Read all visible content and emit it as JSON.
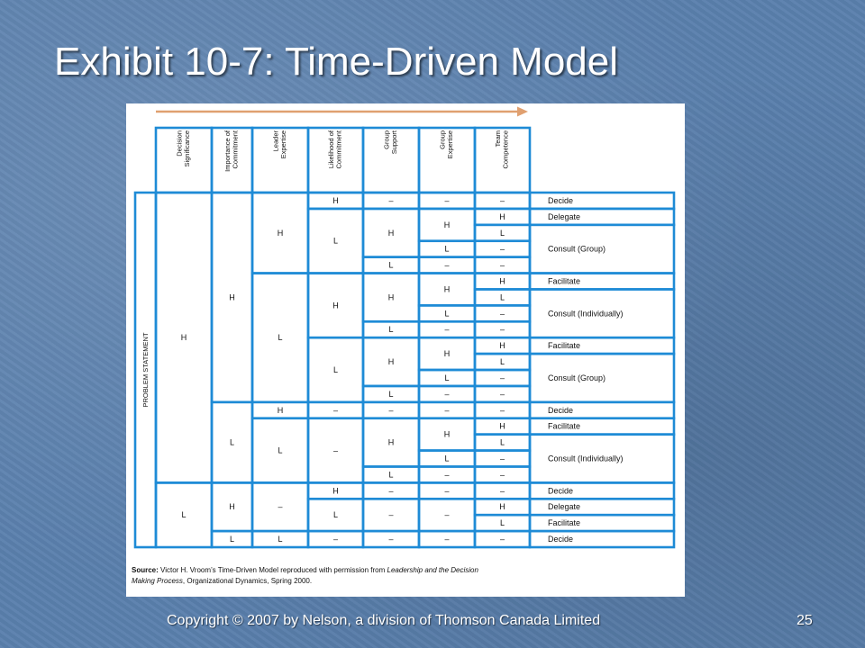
{
  "slide": {
    "title": "Exhibit 10-7: Time-Driven Model",
    "footer": "Copyright © 2007 by Nelson, a division of Thomson Canada Limited",
    "page_number": "25"
  },
  "colors": {
    "background": "#5a80ad",
    "grid": "#1e8bd6",
    "arrow": "#e0a070"
  },
  "figure": {
    "row_label": "PROBLEM STATEMENT",
    "headers": [
      [
        "Decision",
        "Significance"
      ],
      [
        "Importance of",
        "Commitment"
      ],
      [
        "Leader",
        "Expertise"
      ],
      [
        "Likelihood of",
        "Commitment"
      ],
      [
        "Group",
        "Support"
      ],
      [
        "Group",
        "Expertise"
      ],
      [
        "Team",
        "Competence"
      ]
    ],
    "cells": {
      "c0": [
        [
          "H",
          0,
          18
        ],
        [
          "L",
          18,
          22
        ]
      ],
      "c1": [
        [
          "H",
          0,
          13
        ],
        [
          "L",
          13,
          18
        ],
        [
          "H",
          18,
          21
        ],
        [
          "L",
          21,
          22
        ]
      ],
      "c2": [
        [
          "H",
          0,
          5
        ],
        [
          "L",
          5,
          13
        ],
        [
          "H",
          13,
          14
        ],
        [
          "L",
          14,
          18
        ],
        [
          "–",
          18,
          21
        ],
        [
          "L",
          21,
          22
        ]
      ],
      "c3": [
        [
          "H",
          0,
          1
        ],
        [
          "L",
          1,
          5
        ],
        [
          "H",
          5,
          9
        ],
        [
          "L",
          9,
          13
        ],
        [
          "–",
          13,
          14
        ],
        [
          "–",
          14,
          18
        ],
        [
          "H",
          18,
          19
        ],
        [
          "L",
          19,
          21
        ],
        [
          "–",
          21,
          22
        ]
      ],
      "c4": [
        [
          "–",
          0,
          1
        ],
        [
          "H",
          1,
          4
        ],
        [
          "L",
          4,
          5
        ],
        [
          "H",
          5,
          8
        ],
        [
          "L",
          8,
          9
        ],
        [
          "H",
          9,
          12
        ],
        [
          "L",
          12,
          13
        ],
        [
          "–",
          13,
          14
        ],
        [
          "H",
          14,
          17
        ],
        [
          "L",
          17,
          18
        ],
        [
          "–",
          18,
          19
        ],
        [
          "–",
          19,
          21
        ],
        [
          "–",
          21,
          22
        ]
      ],
      "c5": [
        [
          "–",
          0,
          1
        ],
        [
          "H",
          1,
          3
        ],
        [
          "L",
          3,
          4
        ],
        [
          "–",
          4,
          5
        ],
        [
          "H",
          5,
          7
        ],
        [
          "L",
          7,
          8
        ],
        [
          "–",
          8,
          9
        ],
        [
          "H",
          9,
          11
        ],
        [
          "L",
          11,
          12
        ],
        [
          "–",
          12,
          13
        ],
        [
          "–",
          13,
          14
        ],
        [
          "H",
          14,
          16
        ],
        [
          "L",
          16,
          17
        ],
        [
          "–",
          17,
          18
        ],
        [
          "–",
          18,
          19
        ],
        [
          "–",
          19,
          21
        ],
        [
          "–",
          21,
          22
        ]
      ],
      "c6": [
        "–",
        "H",
        "L",
        "–",
        "–",
        "H",
        "L",
        "–",
        "–",
        "H",
        "L",
        "–",
        "–",
        "–",
        "H",
        "L",
        "–",
        "–",
        "–",
        "H",
        "L",
        "–"
      ]
    },
    "outcomes": [
      [
        "Decide",
        0,
        1
      ],
      [
        "Delegate",
        1,
        2
      ],
      [
        "Consult (Group)",
        2,
        5
      ],
      [
        "Facilitate",
        5,
        6
      ],
      [
        "Consult (Individually)",
        6,
        9
      ],
      [
        "Facilitate",
        9,
        10
      ],
      [
        "Consult (Group)",
        10,
        13
      ],
      [
        "Decide",
        13,
        14
      ],
      [
        "Facilitate",
        14,
        15
      ],
      [
        "Consult (Individually)",
        15,
        18
      ],
      [
        "Decide",
        18,
        19
      ],
      [
        "Delegate",
        19,
        20
      ],
      [
        "Facilitate",
        20,
        21
      ],
      [
        "Decide",
        21,
        22
      ]
    ],
    "source_label": "Source:",
    "source_text_1": " Victor H. Vroom’s Time-Driven Model reproduced with permission from ",
    "source_italic_1": "Leadership and the Decision",
    "source_italic_2": "Making Process",
    "source_text_2": ", Organizational Dynamics, Spring 2000."
  }
}
